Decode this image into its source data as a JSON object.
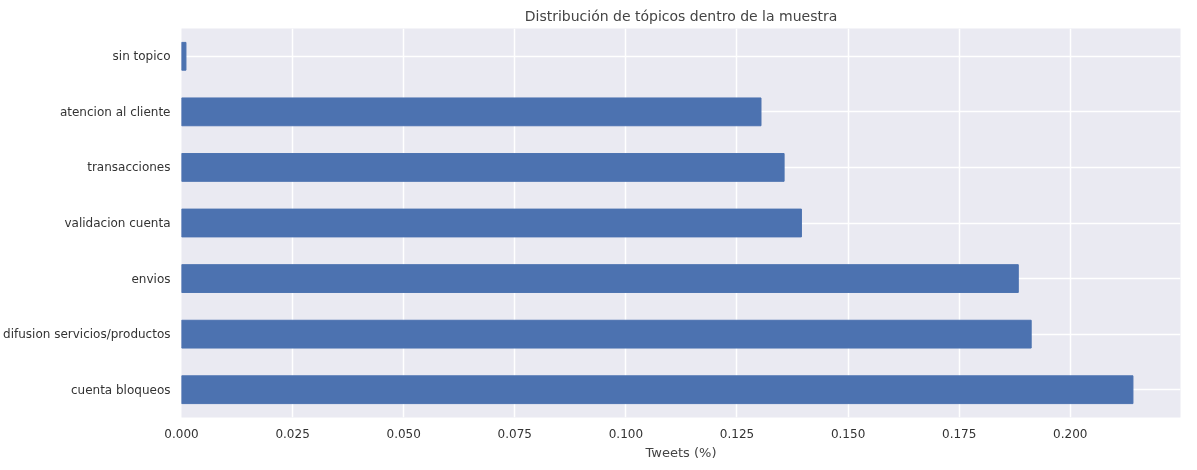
{
  "chart_data": {
    "type": "bar",
    "orientation": "horizontal",
    "title": "Distribución de tópicos dentro de la muestra",
    "xlabel": "Tweets (%)",
    "categories": [
      "sin topico",
      "atencion al cliente",
      "transacciones",
      "validacion cuenta",
      "envios",
      "difusion servicios/productos",
      "cuenta bloqueos"
    ],
    "values": [
      0.001,
      0.1304,
      0.1356,
      0.1395,
      0.1883,
      0.1912,
      0.2141
    ],
    "color": "#4c72b0",
    "xlim": [
      0,
      0.2248
    ],
    "xticks": [
      {
        "value": 0,
        "label": "0.000"
      },
      {
        "value": 0.025,
        "label": "0.025"
      },
      {
        "value": 0.05,
        "label": "0.050"
      },
      {
        "value": 0.075,
        "label": "0.075"
      },
      {
        "value": 0.1,
        "label": "0.100"
      },
      {
        "value": 0.125,
        "label": "0.125"
      },
      {
        "value": 0.15,
        "label": "0.150"
      },
      {
        "value": 0.175,
        "label": "0.175"
      },
      {
        "value": 0.2,
        "label": "0.200"
      }
    ],
    "grid": true
  }
}
